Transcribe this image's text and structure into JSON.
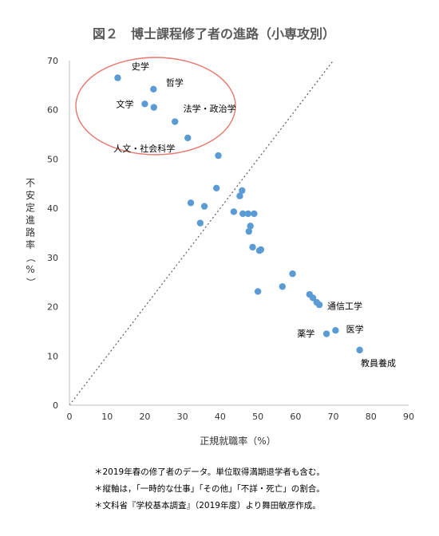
{
  "chart_data": {
    "type": "scatter",
    "title": "図２　博士課程修了者の進路（小専攻別）",
    "xlabel": "正規就職率（%）",
    "ylabel": "不安定進路率（%）",
    "xlim": [
      0,
      90
    ],
    "ylim": [
      0,
      70
    ],
    "xticks": [
      "0",
      "10",
      "20",
      "30",
      "40",
      "50",
      "60",
      "70",
      "80",
      "90"
    ],
    "yticks": [
      "0",
      "10",
      "20",
      "30",
      "40",
      "50",
      "60",
      "70"
    ],
    "grid": false,
    "point_color": "#5B9BD5",
    "diagonal_line": {
      "from": [
        0,
        0
      ],
      "to": [
        70,
        70
      ],
      "style": "dotted",
      "color": "#595959"
    },
    "highlight_ellipse_color": "#E8776D",
    "points": [
      {
        "x": 12.8,
        "y": 66.5
      },
      {
        "x": 22.3,
        "y": 64.2
      },
      {
        "x": 20.0,
        "y": 61.2
      },
      {
        "x": 22.4,
        "y": 60.5
      },
      {
        "x": 28.0,
        "y": 57.6
      },
      {
        "x": 31.4,
        "y": 54.3
      },
      {
        "x": 39.5,
        "y": 50.7
      },
      {
        "x": 32.2,
        "y": 41.1
      },
      {
        "x": 39.0,
        "y": 44.1
      },
      {
        "x": 35.8,
        "y": 40.4
      },
      {
        "x": 45.8,
        "y": 43.6
      },
      {
        "x": 45.2,
        "y": 42.5
      },
      {
        "x": 34.7,
        "y": 37.0
      },
      {
        "x": 43.6,
        "y": 39.3
      },
      {
        "x": 46.0,
        "y": 38.9
      },
      {
        "x": 47.4,
        "y": 38.9
      },
      {
        "x": 49.0,
        "y": 38.9
      },
      {
        "x": 48.0,
        "y": 36.4
      },
      {
        "x": 47.6,
        "y": 35.3
      },
      {
        "x": 48.6,
        "y": 32.1
      },
      {
        "x": 50.8,
        "y": 31.6
      },
      {
        "x": 50.4,
        "y": 31.4
      },
      {
        "x": 59.2,
        "y": 26.7
      },
      {
        "x": 56.5,
        "y": 24.1
      },
      {
        "x": 50.0,
        "y": 23.1
      },
      {
        "x": 63.7,
        "y": 22.5
      },
      {
        "x": 64.6,
        "y": 21.8
      },
      {
        "x": 65.6,
        "y": 20.9
      },
      {
        "x": 66.3,
        "y": 20.4
      },
      {
        "x": 70.6,
        "y": 15.2
      },
      {
        "x": 68.2,
        "y": 14.5
      },
      {
        "x": 77.0,
        "y": 11.2
      }
    ],
    "annotations": [
      {
        "text": "史学",
        "x": 16.5,
        "y": 68.2
      },
      {
        "text": "哲学",
        "x": 25.6,
        "y": 64.9
      },
      {
        "text": "文学",
        "x": 12.4,
        "y": 60.5
      },
      {
        "text": "法学・政治学",
        "x": 30.2,
        "y": 59.6
      },
      {
        "text": "人文・社会科学",
        "x": 11.7,
        "y": 51.5
      },
      {
        "text": "通信工学",
        "x": 68.4,
        "y": 19.5
      },
      {
        "text": "医学",
        "x": 73.4,
        "y": 14.8
      },
      {
        "text": "薬学",
        "x": 60.4,
        "y": 13.9
      },
      {
        "text": "教員養成",
        "x": 77.3,
        "y": 7.9
      }
    ]
  },
  "notes": [
    "＊2019年春の修了者のデータ。単位取得満期退学者も含む。",
    "＊縦軸は，「一時的な仕事」「その他」「不詳・死亡」の割合。",
    "＊文科省『学校基本調査』（2019年度）より舞田敏彦作成。"
  ]
}
